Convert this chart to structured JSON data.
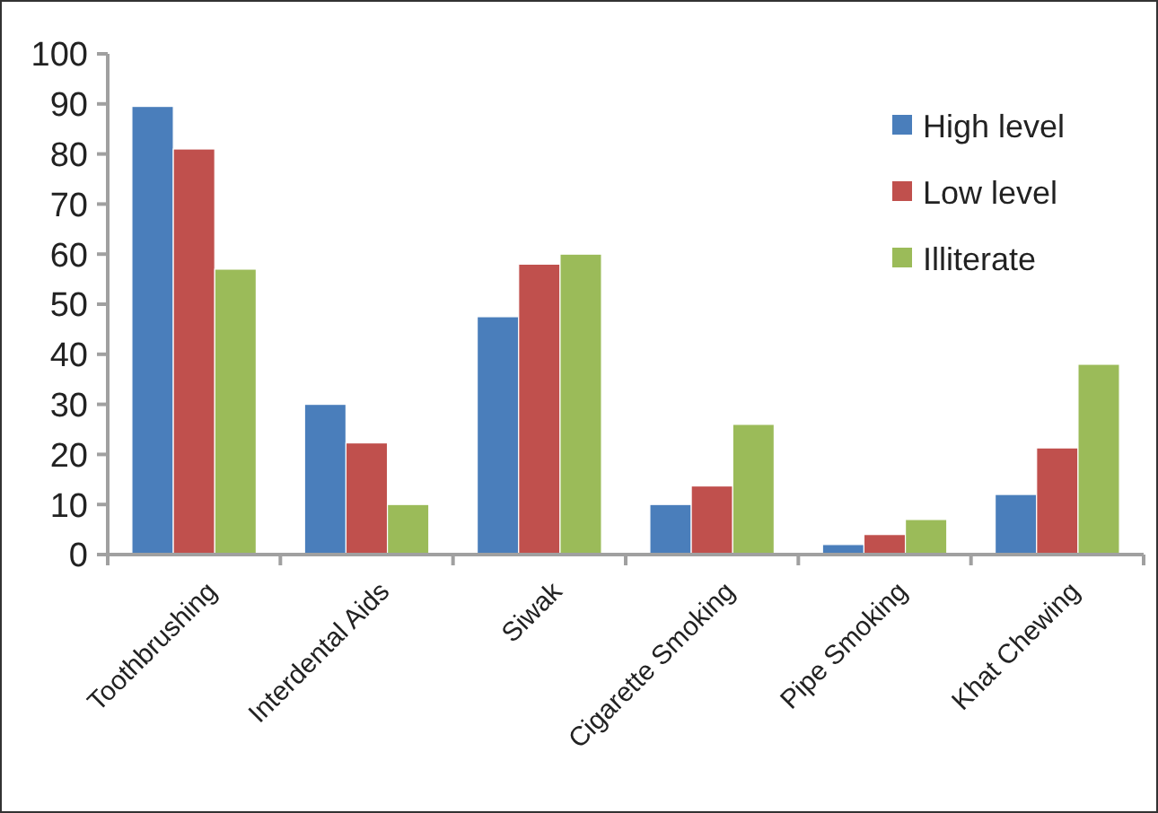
{
  "chart_data": {
    "type": "bar",
    "categories": [
      "Toothbrushing",
      "Interdental Aids",
      "Siwak",
      "Cigarette Smoking",
      "Pipe Smoking",
      "Khat Chewing"
    ],
    "series": [
      {
        "name": "High level",
        "color": "#4a7ebb",
        "values": [
          89.5,
          30,
          47.5,
          10,
          2,
          12
        ]
      },
      {
        "name": "Low level",
        "color": "#c0504d",
        "values": [
          81,
          22.3,
          58,
          13.7,
          4,
          21.3
        ]
      },
      {
        "name": "Illiterate",
        "color": "#9bbb59",
        "values": [
          57,
          10,
          60,
          26,
          7,
          38
        ]
      }
    ],
    "ylim": [
      0,
      100
    ],
    "yticks": [
      0,
      10,
      20,
      30,
      40,
      50,
      60,
      70,
      80,
      90,
      100
    ],
    "grid": false,
    "legend": "top right"
  }
}
